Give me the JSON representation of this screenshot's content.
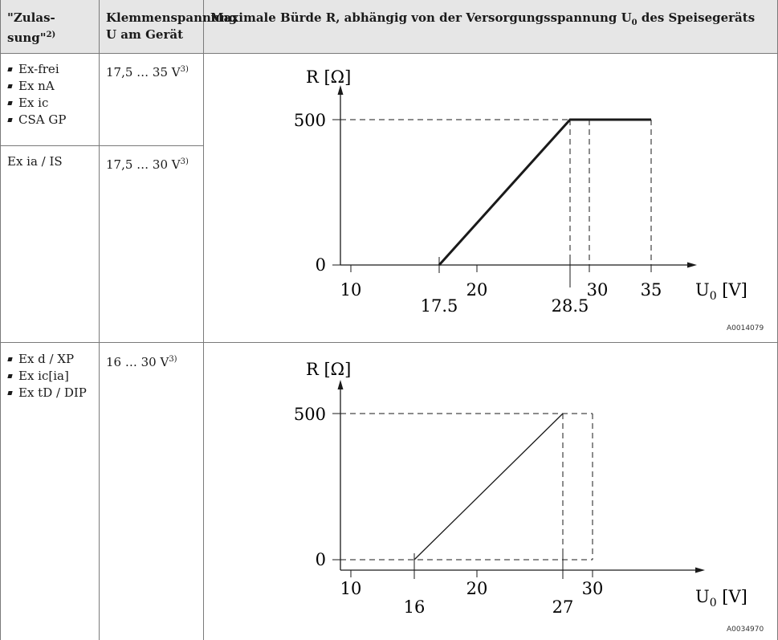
{
  "headers": {
    "col1": "\"Zulas-sung\"",
    "col1_sup": "2)",
    "col2": "Klemmenspannung U am Gerät",
    "col3": "Maximale Bürde R, abhängig von der Versorgungsspannung U",
    "col3_sub": "0",
    "col3_tail": " des Speisegeräts"
  },
  "rows": [
    {
      "approvals": [
        "Ex-frei",
        "Ex nA",
        "Ex ic",
        "CSA GP"
      ],
      "voltage": "17,5 … 35 V",
      "voltage_sup": "3)"
    },
    {
      "approvals_text": "Ex ia / IS",
      "voltage": "17,5 … 30 V",
      "voltage_sup": "3)",
      "figure_id": "A0014079"
    },
    {
      "approvals": [
        "Ex d / XP",
        "Ex ic[ia]",
        "Ex tD / DIP"
      ],
      "voltage": "16 … 30 V",
      "voltage_sup": "3)",
      "figure_id": "A0034970"
    }
  ],
  "chart_data": [
    {
      "type": "line",
      "ylabel": "R [Ω]",
      "xlabel_main": "U",
      "xlabel_sub": "0",
      "xlabel_unit": " [V]",
      "x_ticks": [
        10,
        20,
        30,
        35
      ],
      "y_ticks": [
        0,
        500
      ],
      "x_marks": [
        "17.5",
        "28.5"
      ],
      "series": [
        {
          "x": [
            17.5,
            28.5,
            35
          ],
          "y": [
            0,
            500,
            500
          ]
        }
      ],
      "dashed_verticals": [
        28.5,
        30,
        35
      ]
    },
    {
      "type": "line",
      "ylabel": "R [Ω]",
      "xlabel_main": "U",
      "xlabel_sub": "0",
      "xlabel_unit": " [V]",
      "x_ticks": [
        10,
        20,
        30
      ],
      "y_ticks": [
        0,
        500
      ],
      "x_marks": [
        "16",
        "27"
      ],
      "series": [
        {
          "x": [
            16,
            27
          ],
          "y": [
            0,
            500
          ]
        }
      ],
      "dashed_verticals": [
        27,
        30
      ]
    }
  ]
}
